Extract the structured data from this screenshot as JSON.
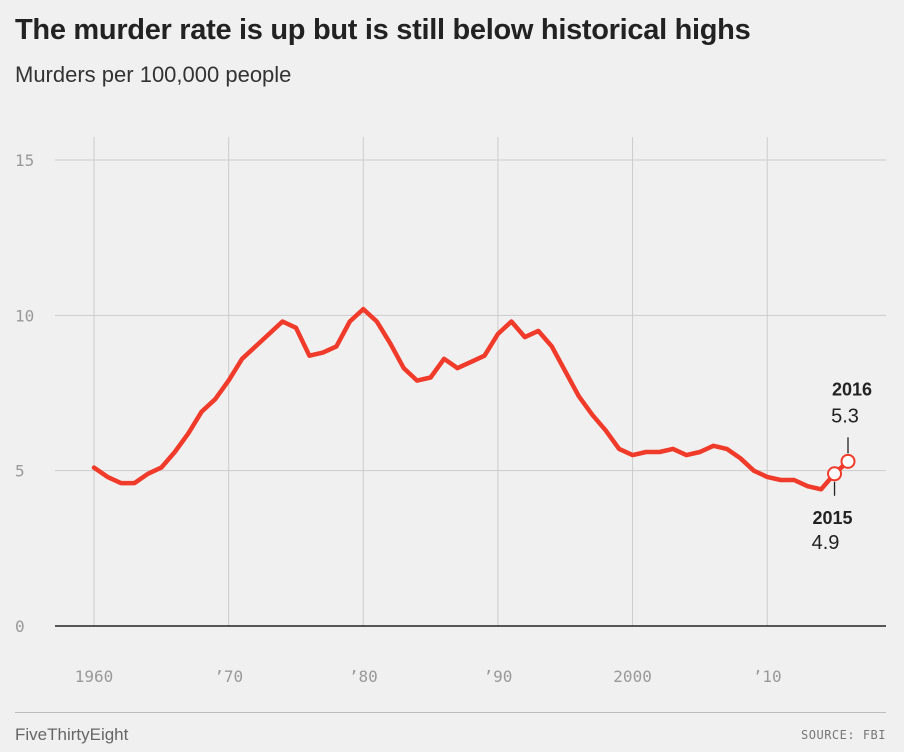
{
  "header": {
    "title": "The murder rate is up but is still below historical highs",
    "subtitle": "Murders per 100,000 people"
  },
  "footer": {
    "brand": "FiveThirtyEight",
    "source": "SOURCE: FBI"
  },
  "colors": {
    "line": "#f03a2a",
    "grid": "#cccccc",
    "axis": "#222222",
    "background": "#f0f0f0"
  },
  "chart_data": {
    "type": "line",
    "title": "The murder rate is up but is still below historical highs",
    "subtitle": "Murders per 100,000 people",
    "xlabel": "",
    "ylabel": "Murders per 100,000 people",
    "xlim": [
      1960,
      2016
    ],
    "ylim": [
      0,
      15
    ],
    "grid": true,
    "x_ticks": [
      {
        "value": 1960,
        "label": "1960"
      },
      {
        "value": 1970,
        "label": "’70"
      },
      {
        "value": 1980,
        "label": "’80"
      },
      {
        "value": 1990,
        "label": "’90"
      },
      {
        "value": 2000,
        "label": "2000"
      },
      {
        "value": 2010,
        "label": "’10"
      }
    ],
    "y_ticks": [
      {
        "value": 0,
        "label": "0"
      },
      {
        "value": 5,
        "label": "5"
      },
      {
        "value": 10,
        "label": "10"
      },
      {
        "value": 15,
        "label": "15"
      }
    ],
    "series": [
      {
        "name": "Murder rate",
        "x": [
          1960,
          1961,
          1962,
          1963,
          1964,
          1965,
          1966,
          1967,
          1968,
          1969,
          1970,
          1971,
          1972,
          1973,
          1974,
          1975,
          1976,
          1977,
          1978,
          1979,
          1980,
          1981,
          1982,
          1983,
          1984,
          1985,
          1986,
          1987,
          1988,
          1989,
          1990,
          1991,
          1992,
          1993,
          1994,
          1995,
          1996,
          1997,
          1998,
          1999,
          2000,
          2001,
          2002,
          2003,
          2004,
          2005,
          2006,
          2007,
          2008,
          2009,
          2010,
          2011,
          2012,
          2013,
          2014,
          2015,
          2016
        ],
        "values": [
          5.1,
          4.8,
          4.6,
          4.6,
          4.9,
          5.1,
          5.6,
          6.2,
          6.9,
          7.3,
          7.9,
          8.6,
          9.0,
          9.4,
          9.8,
          9.6,
          8.7,
          8.8,
          9.0,
          9.8,
          10.2,
          9.8,
          9.1,
          8.3,
          7.9,
          8.0,
          8.6,
          8.3,
          8.5,
          8.7,
          9.4,
          9.8,
          9.3,
          9.5,
          9.0,
          8.2,
          7.4,
          6.8,
          6.3,
          5.7,
          5.5,
          5.6,
          5.6,
          5.7,
          5.5,
          5.6,
          5.8,
          5.7,
          5.4,
          5.0,
          4.8,
          4.7,
          4.7,
          4.5,
          4.4,
          4.9,
          5.3
        ]
      }
    ],
    "annotations": [
      {
        "year": "2015",
        "value": "4.9",
        "x": 2015,
        "y": 4.9,
        "placement": "below"
      },
      {
        "year": "2016",
        "value": "5.3",
        "x": 2016,
        "y": 5.3,
        "placement": "above"
      }
    ]
  }
}
